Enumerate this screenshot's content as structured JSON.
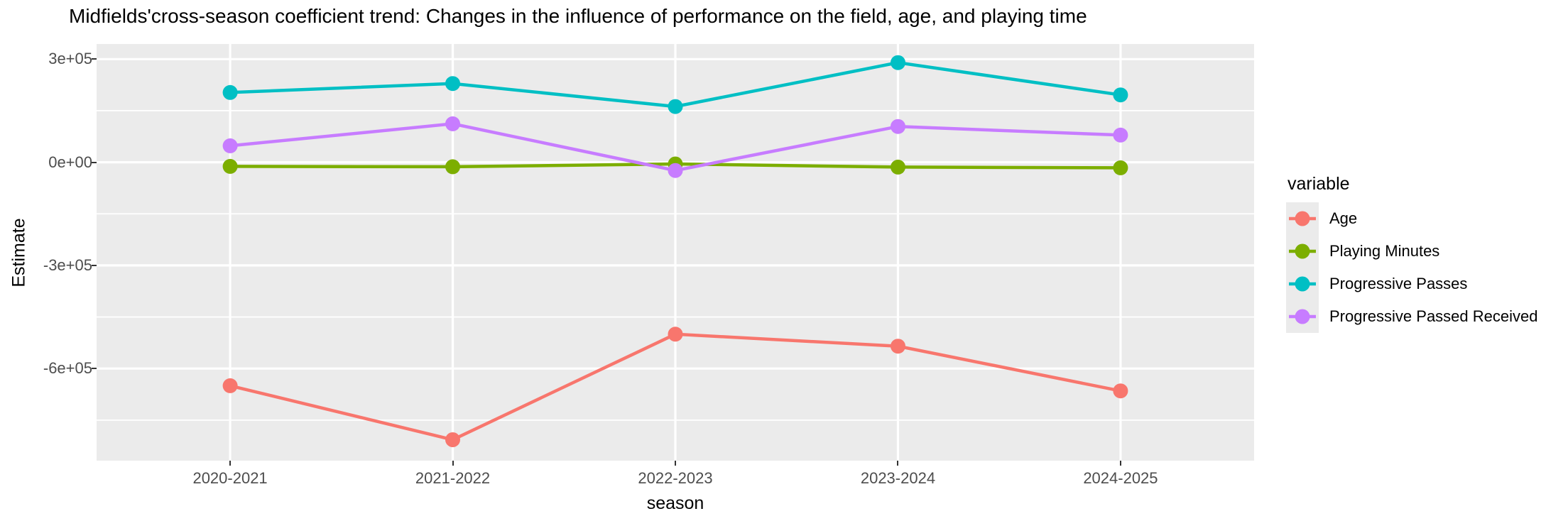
{
  "chart_data": {
    "type": "line",
    "title": "Midfields'cross-season coefficient trend: Changes in the influence of performance on the field, age, and playing time",
    "xlabel": "season",
    "ylabel": "Estimate",
    "categories": [
      "2020-2021",
      "2021-2022",
      "2022-2023",
      "2023-2024",
      "2024-2025"
    ],
    "series": [
      {
        "name": "Age",
        "color": "#F8766D",
        "values": [
          -650000,
          -807000,
          -500000,
          -535000,
          -665000
        ]
      },
      {
        "name": "Playing Minutes",
        "color": "#7CAE00",
        "values": [
          -12000,
          -13000,
          -5000,
          -14000,
          -16000
        ]
      },
      {
        "name": "Progressive Passes",
        "color": "#00BFC4",
        "values": [
          203000,
          229000,
          162000,
          290000,
          196000
        ]
      },
      {
        "name": "Progressive Passed Received",
        "color": "#C77CFF",
        "values": [
          48000,
          112000,
          -24000,
          104000,
          79000
        ]
      }
    ],
    "y_axis": {
      "tick_labels": [
        "3e+05",
        "0e+00",
        "-3e+05",
        "-6e+05"
      ],
      "tick_values": [
        300000,
        0,
        -300000,
        -600000
      ],
      "minor_values": [
        150000,
        -150000,
        -450000,
        -750000
      ],
      "ylim": [
        -868000,
        344000
      ]
    },
    "legend": {
      "title": "variable",
      "position": "right"
    },
    "style": {
      "panel_bg": "#EBEBEB",
      "grid_color": "#FFFFFF",
      "axis_text_color": "#4d4d4d",
      "tick_mark_color": "#333333",
      "grid": "on"
    }
  }
}
